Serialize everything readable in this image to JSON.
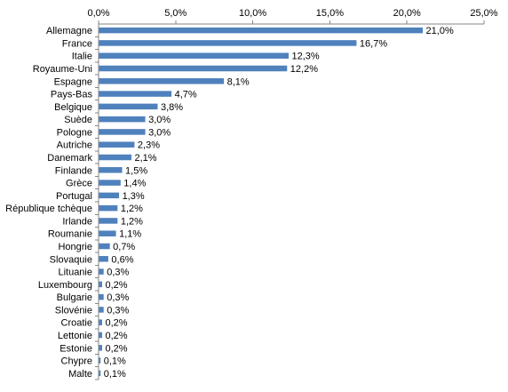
{
  "chart_data": {
    "type": "bar",
    "orientation": "horizontal",
    "categories": [
      "Allemagne",
      "France",
      "Italie",
      "Royaume-Uni",
      "Espagne",
      "Pays-Bas",
      "Belgique",
      "Suède",
      "Pologne",
      "Autriche",
      "Danemark",
      "Finlande",
      "Grèce",
      "Portugal",
      "République tchèque",
      "Irlande",
      "Roumanie",
      "Hongrie",
      "Slovaquie",
      "Lituanie",
      "Luxembourg",
      "Bulgarie",
      "Slovénie",
      "Croatie",
      "Lettonie",
      "Estonie",
      "Chypre",
      "Malte"
    ],
    "values": [
      21.0,
      16.7,
      12.3,
      12.2,
      8.1,
      4.7,
      3.8,
      3.0,
      3.0,
      2.3,
      2.1,
      1.5,
      1.4,
      1.3,
      1.2,
      1.2,
      1.1,
      0.7,
      0.6,
      0.3,
      0.2,
      0.3,
      0.3,
      0.2,
      0.2,
      0.2,
      0.1,
      0.1
    ],
    "data_labels": [
      "21,0%",
      "16,7%",
      "12,3%",
      "12,2%",
      "8,1%",
      "4,7%",
      "3,8%",
      "3,0%",
      "3,0%",
      "2,3%",
      "2,1%",
      "1,5%",
      "1,4%",
      "1,3%",
      "1,2%",
      "1,2%",
      "1,1%",
      "0,7%",
      "0,6%",
      "0,3%",
      "0,2%",
      "0,3%",
      "0,3%",
      "0,2%",
      "0,2%",
      "0,2%",
      "0,1%",
      "0,1%"
    ],
    "x_ticks": [
      0,
      5,
      10,
      15,
      20,
      25
    ],
    "x_tick_labels": [
      "0,0%",
      "5,0%",
      "10,0%",
      "15,0%",
      "20,0%",
      "25,0%"
    ],
    "xlim": [
      0,
      25
    ],
    "axis_position": "top",
    "grid": false,
    "legend": false,
    "bar_color": "#4F81BD"
  }
}
